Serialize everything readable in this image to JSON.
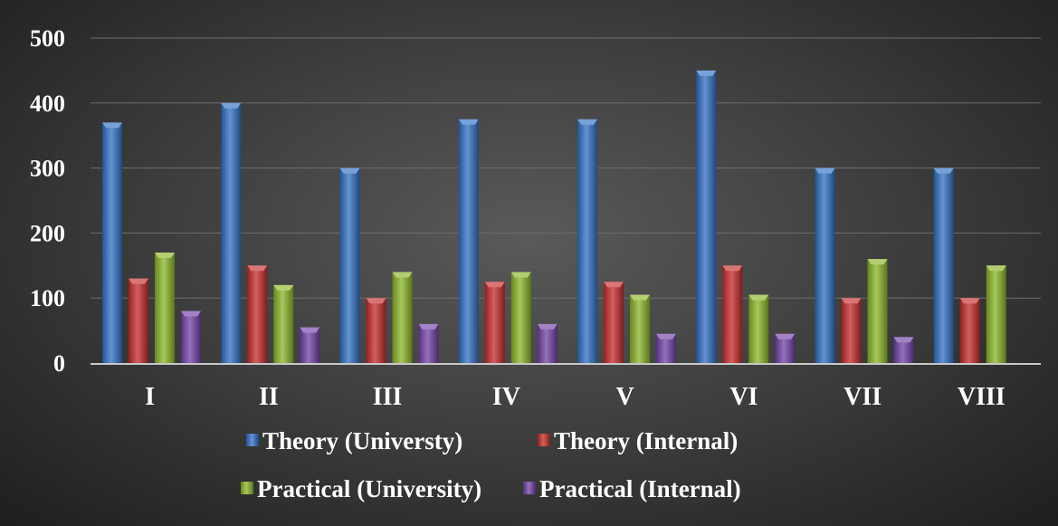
{
  "chart_data": {
    "type": "bar",
    "categories": [
      "I",
      "II",
      "III",
      "IV",
      "V",
      "VI",
      "VII",
      "VIII"
    ],
    "series": [
      {
        "name": "Theory (Universty)",
        "values": [
          370,
          400,
          300,
          375,
          375,
          450,
          300,
          300
        ],
        "color": "#2f6fc4"
      },
      {
        "name": "Theory (Internal)",
        "values": [
          130,
          150,
          100,
          125,
          125,
          150,
          100,
          100
        ],
        "color": "#c62a2a"
      },
      {
        "name": "Practical (University)",
        "values": [
          170,
          120,
          140,
          140,
          105,
          105,
          160,
          150
        ],
        "color": "#8ab526"
      },
      {
        "name": "Practical (Internal)",
        "values": [
          80,
          55,
          60,
          60,
          45,
          45,
          40,
          0
        ],
        "color": "#7140a6"
      }
    ],
    "yticks": [
      "0",
      "100",
      "200",
      "300",
      "400",
      "500"
    ],
    "ylim": [
      0,
      500
    ],
    "grid": true,
    "legend_position": "bottom",
    "title": "",
    "xlabel": "",
    "ylabel": ""
  }
}
